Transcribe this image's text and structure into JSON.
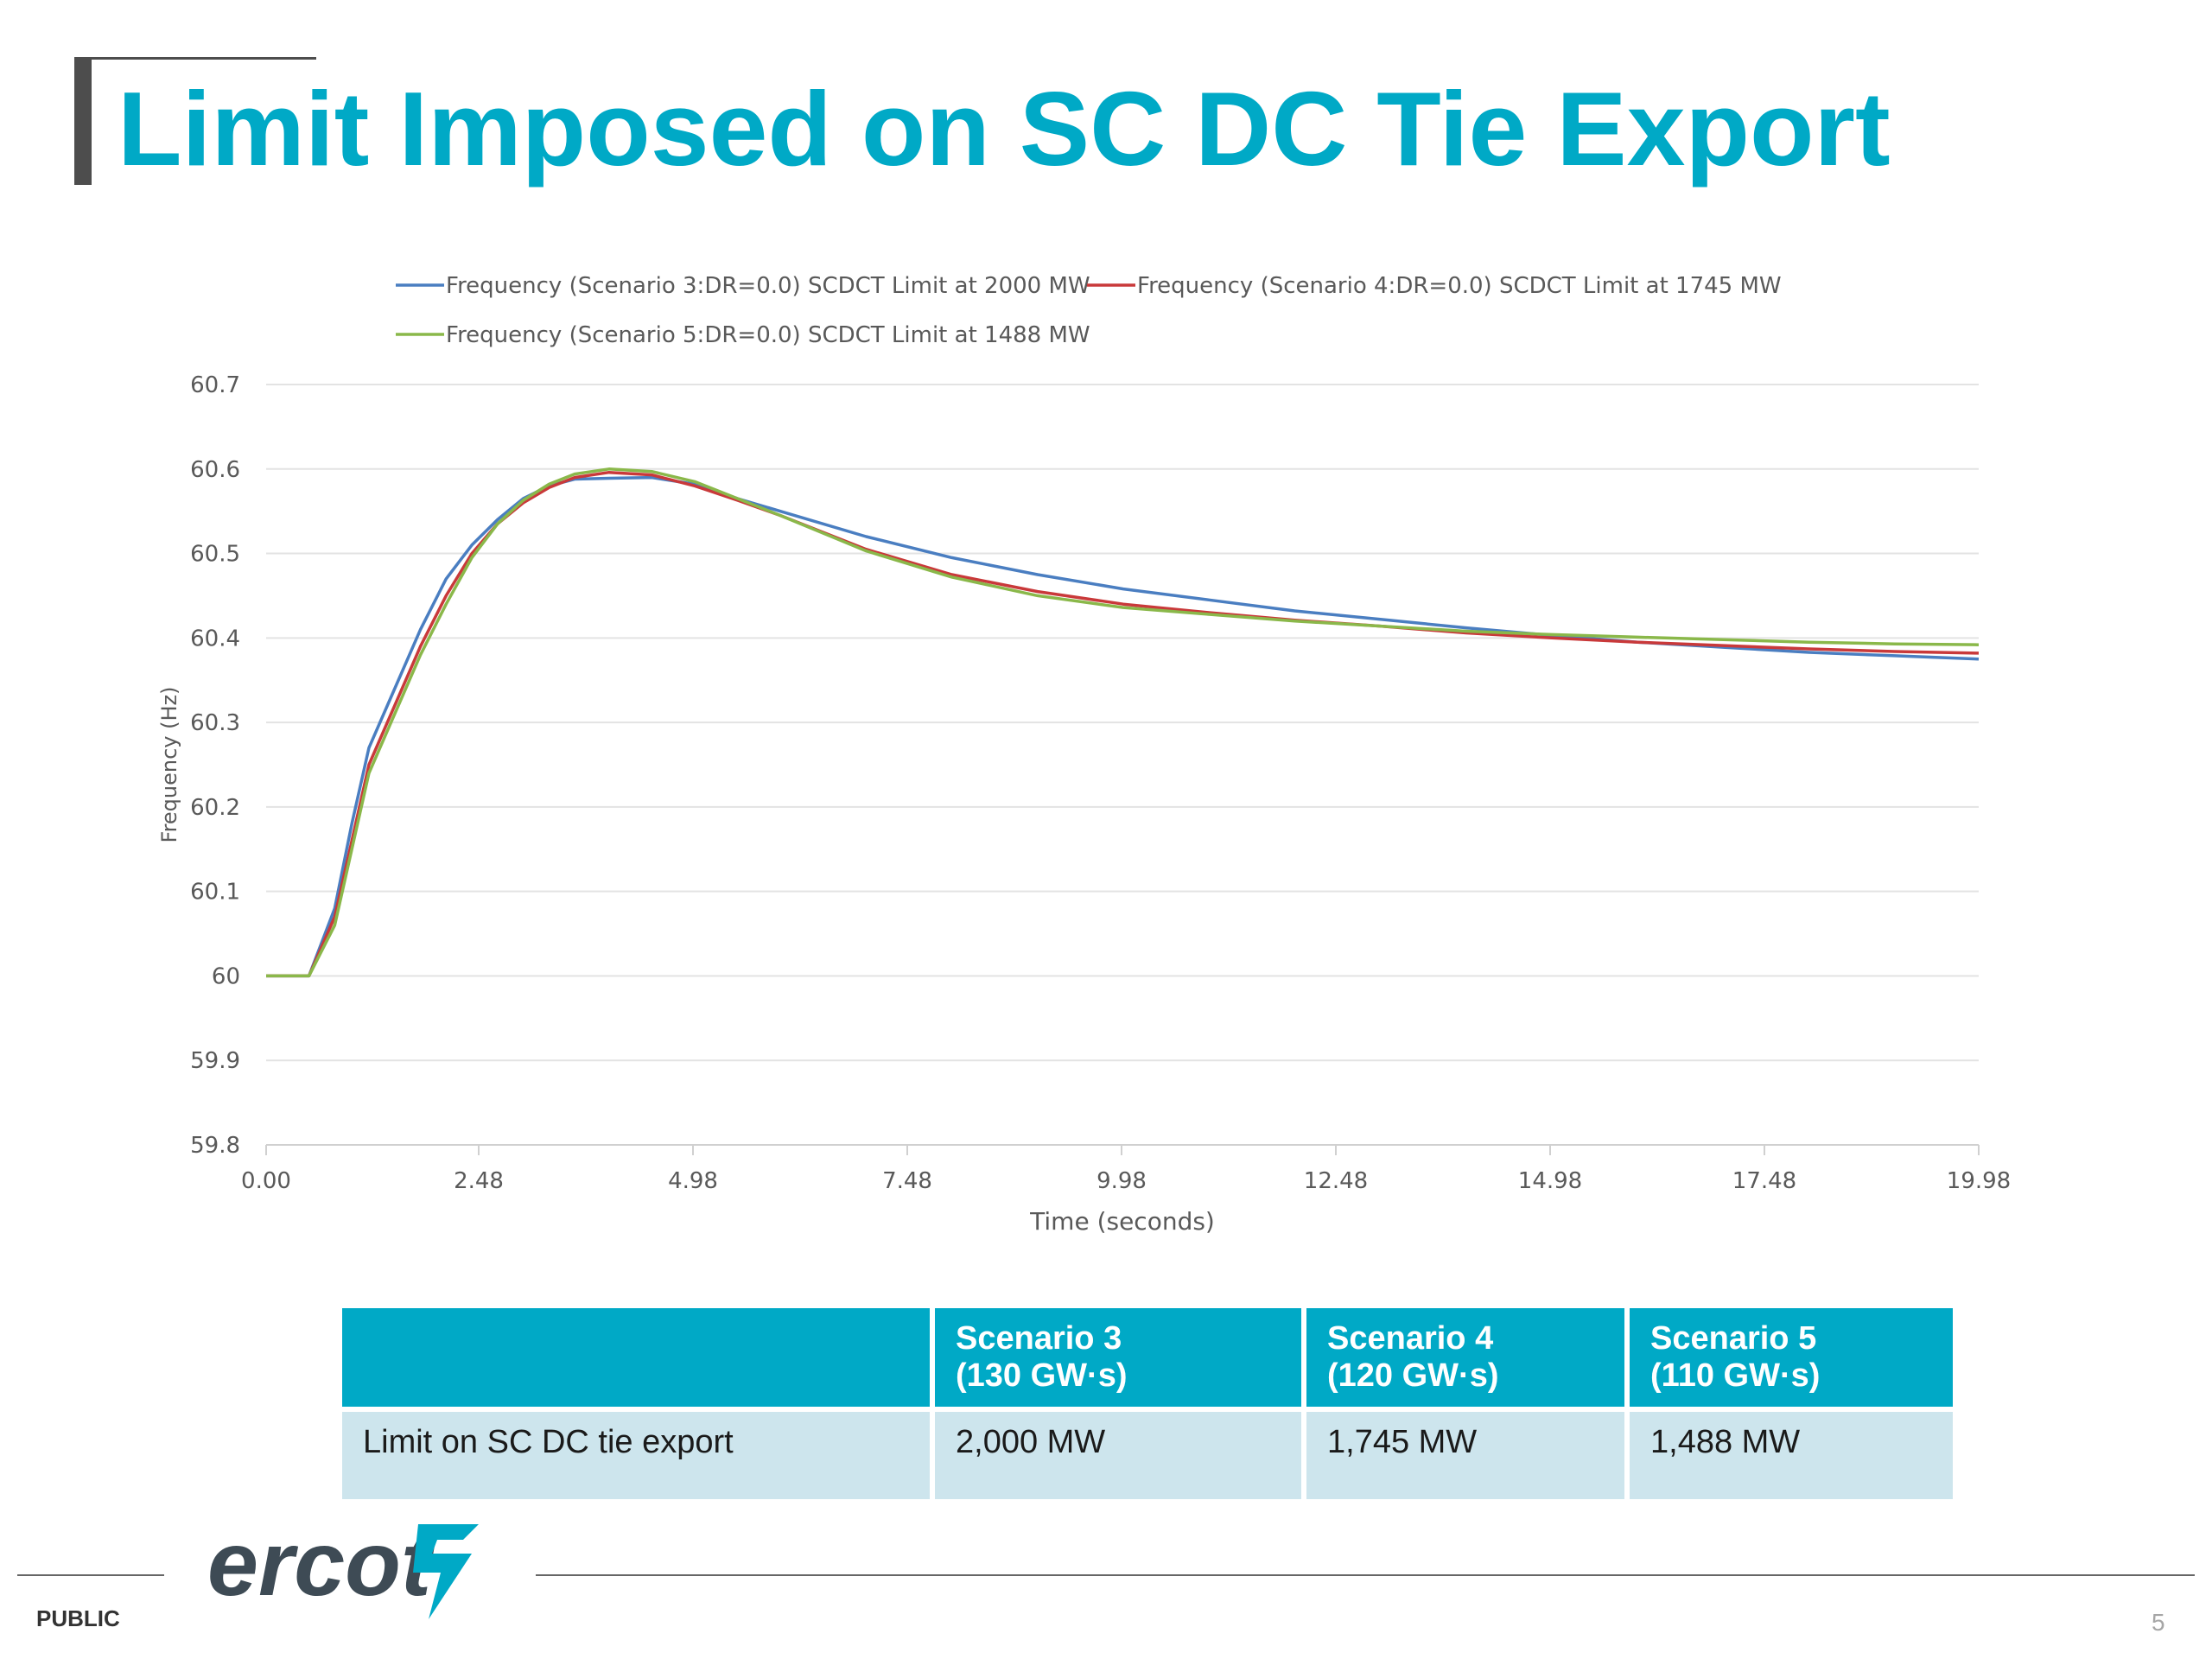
{
  "slide": {
    "title": "Limit Imposed on SC DC Tie Export",
    "footer_label": "PUBLIC",
    "page_number": "5",
    "logo_text": "ercot",
    "accent_color": "#00a9c6"
  },
  "chart_data": {
    "type": "line",
    "title": "",
    "xlabel": "Time (seconds)",
    "ylabel": "Frequency (Hz)",
    "xlim": [
      0,
      19.98
    ],
    "ylim": [
      59.8,
      60.7
    ],
    "x_tick_labels": [
      "0.00",
      "2.48",
      "4.98",
      "7.48",
      "9.98",
      "12.48",
      "14.98",
      "17.48",
      "19.98"
    ],
    "y_tick_labels": [
      "60.7",
      "60.6",
      "60.5",
      "60.4",
      "60.3",
      "60.2",
      "60.1",
      "60",
      "59.9",
      "59.8"
    ],
    "grid": "horizontal",
    "legend_position": "top",
    "series": [
      {
        "name": "Frequency (Scenario 3:DR=0.0) SCDCT Limit at 2000 MW",
        "color": "#4a7ec1",
        "x": [
          0,
          0.5,
          0.8,
          1.0,
          1.2,
          1.5,
          1.8,
          2.1,
          2.4,
          2.7,
          3.0,
          3.3,
          3.6,
          4.0,
          4.5,
          5.0,
          5.5,
          6.0,
          7.0,
          8.0,
          9.0,
          10.0,
          11.0,
          12.0,
          13.0,
          14.0,
          15.0,
          16.0,
          17.0,
          18.0,
          19.0,
          19.98
        ],
        "y": [
          60.0,
          60.0,
          60.08,
          60.18,
          60.27,
          60.34,
          60.41,
          60.47,
          60.51,
          60.54,
          60.565,
          60.58,
          60.588,
          60.589,
          60.59,
          60.582,
          60.565,
          60.55,
          60.52,
          60.495,
          60.475,
          60.458,
          60.445,
          60.432,
          60.422,
          60.412,
          60.403,
          60.395,
          60.389,
          60.383,
          60.379,
          60.375
        ]
      },
      {
        "name": "Frequency (Scenario 4:DR=0.0) SCDCT Limit at 1745 MW",
        "color": "#c9393a",
        "x": [
          0,
          0.5,
          0.8,
          1.0,
          1.2,
          1.5,
          1.8,
          2.1,
          2.4,
          2.7,
          3.0,
          3.3,
          3.6,
          4.0,
          4.5,
          5.0,
          5.5,
          6.0,
          7.0,
          8.0,
          9.0,
          10.0,
          11.0,
          12.0,
          13.0,
          14.0,
          15.0,
          16.0,
          17.0,
          18.0,
          19.0,
          19.98
        ],
        "y": [
          60.0,
          60.0,
          60.07,
          60.16,
          60.25,
          60.32,
          60.39,
          60.45,
          60.5,
          60.535,
          60.56,
          60.578,
          60.59,
          60.596,
          60.593,
          60.58,
          60.563,
          60.545,
          60.505,
          60.475,
          60.455,
          60.44,
          60.43,
          60.421,
          60.414,
          60.406,
          60.4,
          60.395,
          60.391,
          60.387,
          60.384,
          60.382
        ]
      },
      {
        "name": "Frequency (Scenario 5:DR=0.0) SCDCT Limit at 1488 MW",
        "color": "#8ab84a",
        "x": [
          0,
          0.5,
          0.8,
          1.0,
          1.2,
          1.5,
          1.8,
          2.1,
          2.4,
          2.7,
          3.0,
          3.3,
          3.6,
          4.0,
          4.5,
          5.0,
          5.5,
          6.0,
          7.0,
          8.0,
          9.0,
          10.0,
          11.0,
          12.0,
          13.0,
          14.0,
          15.0,
          16.0,
          17.0,
          18.0,
          19.0,
          19.98
        ],
        "y": [
          60.0,
          60.0,
          60.06,
          60.15,
          60.24,
          60.31,
          60.38,
          60.44,
          60.495,
          60.535,
          60.563,
          60.582,
          60.594,
          60.6,
          60.597,
          60.585,
          60.565,
          60.545,
          60.503,
          60.472,
          60.45,
          60.436,
          60.428,
          60.42,
          60.414,
          60.408,
          60.404,
          60.401,
          60.398,
          60.395,
          60.393,
          60.392
        ]
      }
    ]
  },
  "table": {
    "header": [
      {
        "line1": "",
        "line2": ""
      },
      {
        "line1": "Scenario 3",
        "line2": "(130 GW·s)"
      },
      {
        "line1": "Scenario 4",
        "line2": "(120 GW·s)"
      },
      {
        "line1": "Scenario 5",
        "line2": "(110 GW·s)"
      }
    ],
    "row": [
      "Limit on SC DC tie export",
      "2,000 MW",
      "1,745 MW",
      "1,488 MW"
    ]
  }
}
